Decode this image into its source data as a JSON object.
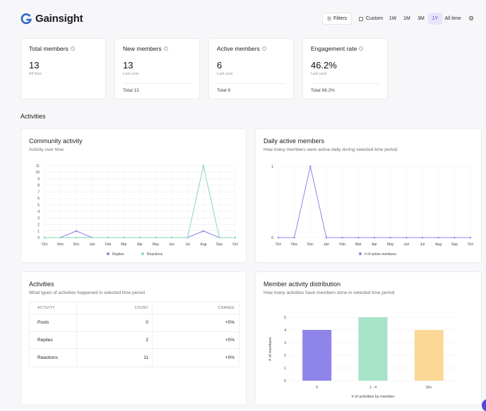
{
  "brand": {
    "name": "Gainsight",
    "logo_icon": "gainsight-g-icon",
    "logo_color": "#2b66c8"
  },
  "toolbar": {
    "filters_label": "Filters",
    "custom_label": "Custom",
    "ranges": [
      "1W",
      "1M",
      "3M",
      "1Y"
    ],
    "active_range": "1Y",
    "alltime_label": "All time",
    "accent": "#5146d8"
  },
  "kpis": [
    {
      "title": "Total members",
      "value": "13",
      "sub": "All time",
      "total": ""
    },
    {
      "title": "New members",
      "value": "13",
      "sub": "Last year",
      "total": "Total 13"
    },
    {
      "title": "Active members",
      "value": "6",
      "sub": "Last year",
      "total": "Total 9"
    },
    {
      "title": "Engagement rate",
      "value": "46.2%",
      "sub": "Last year",
      "total": "Total 69.2%"
    }
  ],
  "section": {
    "title": "Activities"
  },
  "community": {
    "title": "Community activity",
    "subtitle": "Activity over time"
  },
  "daily": {
    "title": "Daily active members",
    "subtitle": "How many members were active daily during selected time period"
  },
  "activities": {
    "title": "Activities",
    "subtitle": "What types of activities happened in selected time period",
    "headers": {
      "activity": "ACTIVITY",
      "count": "COUNT",
      "change": "CHANGE"
    },
    "rows": [
      {
        "activity": "Posts",
        "count": "0",
        "change": "+0%"
      },
      {
        "activity": "Replies",
        "count": "2",
        "change": "+0%"
      },
      {
        "activity": "Reactions",
        "count": "11",
        "change": "+0%"
      }
    ]
  },
  "distribution": {
    "title": "Member activity distribution",
    "subtitle": "How many activities have members done in selected time period"
  },
  "chart_data": [
    {
      "type": "line",
      "x": [
        "Oct",
        "Nov",
        "Dec",
        "Jan",
        "Feb",
        "Mar",
        "Apr",
        "May",
        "Jun",
        "Jul",
        "Aug",
        "Sep",
        "Oct"
      ],
      "series": [
        {
          "name": "Replies",
          "color": "#8f84ea",
          "values": [
            0,
            0,
            1,
            0,
            0,
            0,
            0,
            0,
            0,
            0,
            1,
            0,
            0
          ]
        },
        {
          "name": "Reactions",
          "color": "#86d9b5",
          "values": [
            0,
            0,
            0,
            0,
            0,
            0,
            0,
            0,
            0,
            0,
            11,
            0,
            0
          ]
        }
      ],
      "yticks": [
        0,
        1,
        2,
        3,
        4,
        5,
        6,
        7,
        8,
        9,
        10,
        11
      ],
      "ylim": [
        0,
        11
      ],
      "grid": true,
      "legend": "bottom-center"
    },
    {
      "type": "line",
      "x": [
        "Oct",
        "Nov",
        "Dec",
        "Jan",
        "Feb",
        "Mar",
        "Apr",
        "May",
        "Jun",
        "Jul",
        "Aug",
        "Sep",
        "Oct"
      ],
      "series": [
        {
          "name": "# of active members",
          "color": "#8f84ea",
          "values": [
            0,
            0,
            1,
            0,
            0,
            0,
            0,
            0,
            0,
            0,
            0,
            0,
            0
          ]
        }
      ],
      "yticks": [
        0,
        1
      ],
      "ylim": [
        0,
        1
      ],
      "grid": true,
      "legend": "bottom-center"
    },
    {
      "type": "bar",
      "categories": [
        "0",
        "1 - 4",
        "50+"
      ],
      "values": [
        4,
        5,
        4
      ],
      "colors": [
        "#8f84ea",
        "#a6e3c8",
        "#fbd896"
      ],
      "yticks": [
        0,
        1,
        2,
        3,
        4,
        5
      ],
      "ylim": [
        0,
        5
      ],
      "xlabel": "# of activities by member",
      "ylabel": "# of members",
      "grid": true
    }
  ]
}
